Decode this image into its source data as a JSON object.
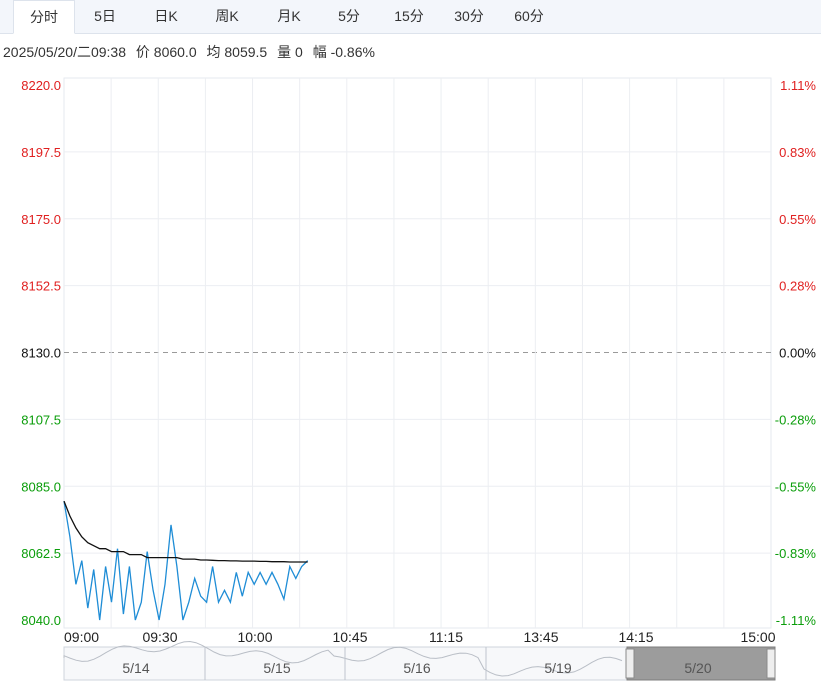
{
  "tabs": [
    "分时",
    "5日",
    "日K",
    "周K",
    "月K",
    "5分",
    "15分",
    "30分",
    "60分"
  ],
  "active_tab": 0,
  "info": {
    "datetime": "2025/05/20/二09:38",
    "price": "价 8060.0",
    "avg": "均 8059.5",
    "volume": "量 0",
    "change": "幅 -0.86%"
  },
  "colors": {
    "up": "#e02020",
    "down": "#0a9d0a",
    "neutral": "#111111",
    "price_line": "#1f8dd6",
    "avg_line": "#111111"
  },
  "chart_data": {
    "type": "line",
    "prev_close": 8130.0,
    "ylim": [
      8040.0,
      8220.0
    ],
    "y_ticks": [
      "8220.0",
      "8197.5",
      "8175.0",
      "8152.5",
      "8130.0",
      "8107.5",
      "8085.0",
      "8062.5",
      "8040.0"
    ],
    "y_ticks_right": [
      "1.11%",
      "0.83%",
      "0.55%",
      "0.28%",
      "0.00%",
      "-0.28%",
      "-0.55%",
      "-0.83%",
      "-1.11%"
    ],
    "x_ticks": [
      "09:00",
      "09:30",
      "10:00",
      "10:45",
      "11:15",
      "13:45",
      "14:15",
      "15:00"
    ],
    "minutes_total": 345,
    "price": [
      8080,
      8068,
      8052,
      8060,
      8044,
      8057,
      8040,
      8058,
      8046,
      8064,
      8042,
      8058,
      8040,
      8046,
      8063,
      8050,
      8040,
      8052,
      8072,
      8058,
      8040,
      8046,
      8054,
      8048,
      8046,
      8058,
      8046,
      8050,
      8046,
      8056,
      8048,
      8056,
      8052,
      8056,
      8052,
      8056,
      8052,
      8047,
      8058,
      8054,
      8058,
      8060
    ],
    "avg": [
      8080,
      8075,
      8071,
      8068,
      8066,
      8065,
      8064,
      8064,
      8063,
      8063,
      8063,
      8062,
      8062,
      8062,
      8061,
      8061,
      8061,
      8061,
      8061,
      8061,
      8060.5,
      8060.5,
      8060.5,
      8060.2,
      8060.2,
      8060.1,
      8060,
      8060,
      8059.9,
      8059.9,
      8059.8,
      8059.8,
      8059.8,
      8059.7,
      8059.7,
      8059.6,
      8059.6,
      8059.6,
      8059.5,
      8059.5,
      8059.5,
      8059.5
    ]
  },
  "navigator": {
    "days": [
      "5/14",
      "5/15",
      "5/16",
      "5/19",
      "5/20"
    ],
    "selected": 4
  }
}
